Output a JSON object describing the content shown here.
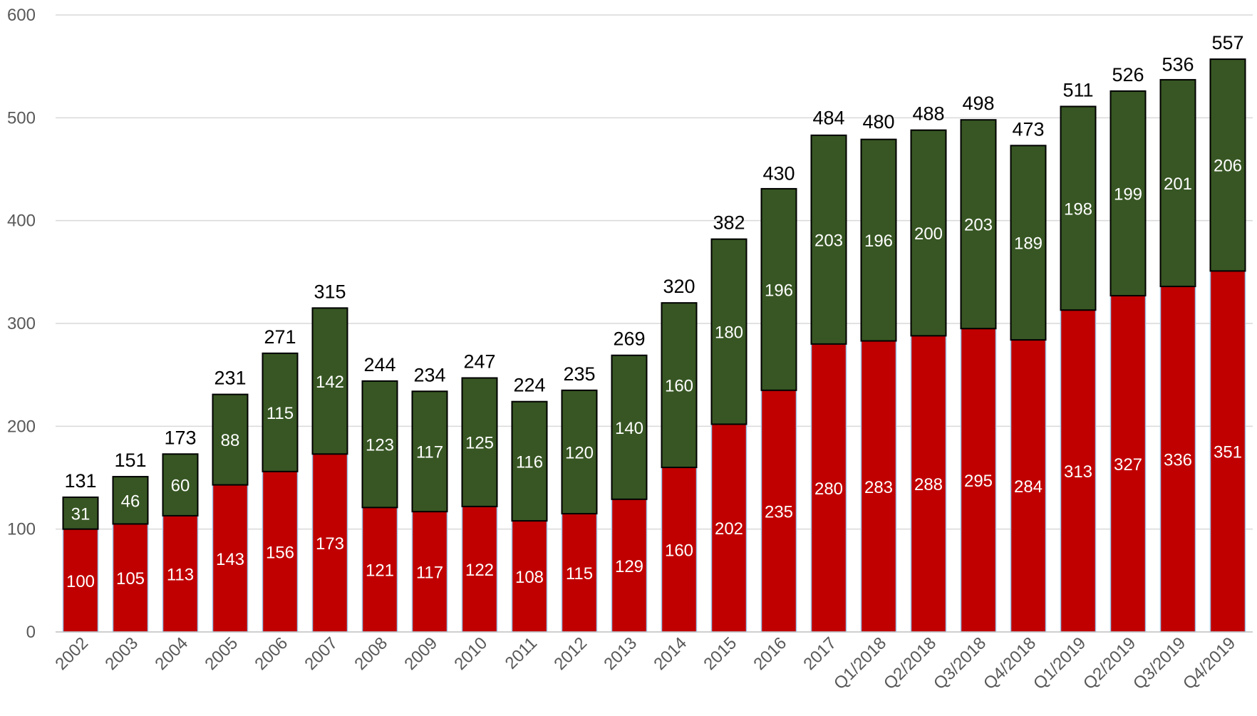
{
  "chart_data": {
    "type": "bar",
    "stacked": true,
    "title": "",
    "xlabel": "",
    "ylabel": "",
    "ylim": [
      0,
      600
    ],
    "yticks": [
      0,
      100,
      200,
      300,
      400,
      500,
      600
    ],
    "grid": true,
    "legend": "none",
    "categories": [
      "2002",
      "2003",
      "2004",
      "2005",
      "2006",
      "2007",
      "2008",
      "2009",
      "2010",
      "2011",
      "2012",
      "2013",
      "2014",
      "2015",
      "2016",
      "2017",
      "Q1/2018",
      "Q2/2018",
      "Q3/2018",
      "Q4/2018",
      "Q1/2019",
      "Q2/2019",
      "Q3/2019",
      "Q4/2019"
    ],
    "series": [
      {
        "color": "#c00000",
        "values": [
          100,
          105,
          113,
          143,
          156,
          173,
          121,
          117,
          122,
          108,
          115,
          129,
          160,
          202,
          235,
          280,
          283,
          288,
          295,
          284,
          313,
          327,
          336,
          351
        ]
      },
      {
        "color": "#375623",
        "values": [
          31,
          46,
          60,
          88,
          115,
          142,
          123,
          117,
          125,
          116,
          120,
          140,
          160,
          180,
          196,
          203,
          196,
          200,
          203,
          189,
          198,
          199,
          201,
          206
        ]
      }
    ],
    "totals": [
      131,
      151,
      173,
      231,
      271,
      315,
      244,
      234,
      247,
      224,
      235,
      269,
      320,
      382,
      430,
      484,
      480,
      488,
      498,
      473,
      511,
      526,
      536,
      557
    ]
  }
}
